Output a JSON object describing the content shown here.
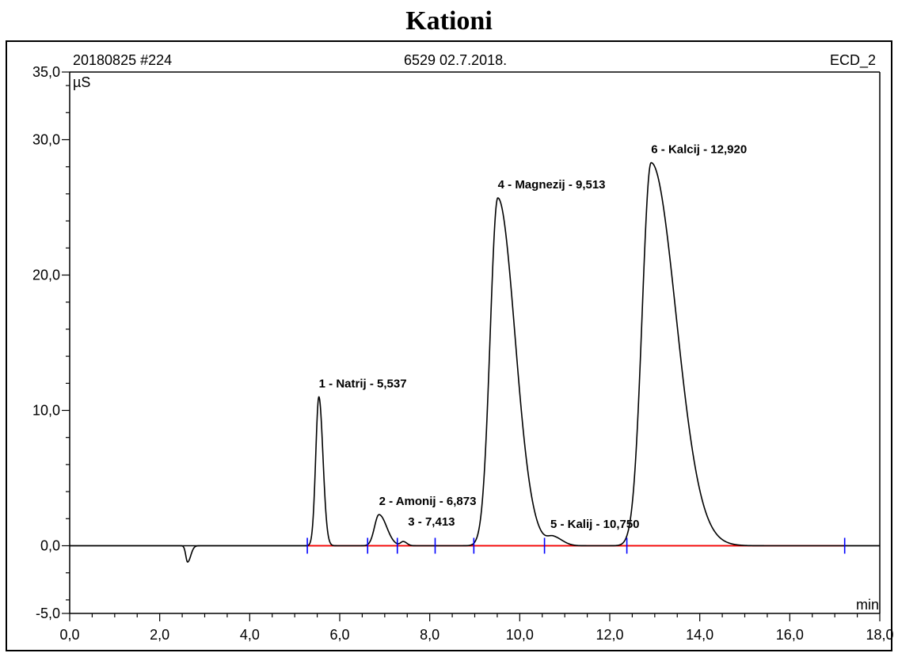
{
  "page": {
    "title": "Kationi"
  },
  "header": {
    "left": "20180825 #224",
    "center": "6529 02.7.2018.",
    "right": "ECD_2"
  },
  "colors": {
    "trace": "#000000",
    "baseline": "#ff0000",
    "markers": "#0000ff",
    "frame": "#000000"
  },
  "chart_data": {
    "type": "line",
    "title": "Kationi",
    "xlabel": "min",
    "ylabel": "µS",
    "xlim": [
      0.0,
      18.0
    ],
    "ylim": [
      -5.0,
      35.0
    ],
    "x_ticks": [
      "0,0",
      "2,0",
      "4,0",
      "6,0",
      "8,0",
      "10,0",
      "12,0",
      "14,0",
      "16,0",
      "18,0"
    ],
    "y_ticks": [
      "-5,0",
      "0,0",
      "10,0",
      "20,0",
      "30,0",
      "35,0"
    ],
    "grid": false,
    "peaks": [
      {
        "label": "1 - Natrij - 5,537",
        "rt": 5.537,
        "height": 11.0
      },
      {
        "label": "2 - Amonij - 6,873",
        "rt": 6.873,
        "height": 2.3
      },
      {
        "label": "3 - 7,413",
        "rt": 7.413,
        "height": 0.3
      },
      {
        "label": "4 - Magnezij - 9,513",
        "rt": 9.513,
        "height": 25.7
      },
      {
        "label": "5 - Kalij - 10,750",
        "rt": 10.75,
        "height": 0.6
      },
      {
        "label": "6 - Kalcij - 12,920",
        "rt": 12.92,
        "height": 28.3
      }
    ],
    "dip": {
      "rt": 2.62,
      "height": -1.2
    },
    "integration_markers_min": [
      5.28,
      6.62,
      7.28,
      8.12,
      8.98,
      10.55,
      12.38,
      17.22
    ],
    "baseline_range_min": [
      5.28,
      17.22
    ]
  }
}
